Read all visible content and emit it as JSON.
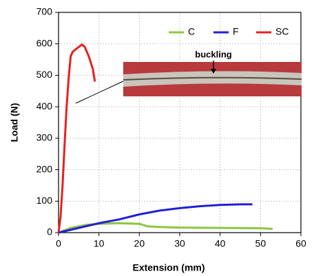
{
  "chart_data": {
    "type": "line",
    "xlabel": "Extension (mm)",
    "ylabel": "Load (N)",
    "annotation": "buckling",
    "xlim": [
      0,
      60
    ],
    "xticks": [
      0,
      10,
      20,
      30,
      40,
      50,
      60
    ],
    "ylim": [
      0,
      700
    ],
    "yticks": [
      0,
      100,
      200,
      300,
      400,
      500,
      600,
      700
    ],
    "grid": true,
    "legend": "top-right",
    "series": [
      {
        "name": "C",
        "color": "#8cc63f",
        "x": [
          0,
          3,
          7,
          10,
          15,
          20,
          22,
          25,
          30,
          40,
          50,
          53
        ],
        "values": [
          0,
          15,
          25,
          28,
          30,
          28,
          20,
          18,
          16,
          15,
          14,
          12
        ]
      },
      {
        "name": "F",
        "color": "#1f1fd6",
        "x": [
          0,
          5,
          10,
          15,
          20,
          25,
          30,
          35,
          40,
          45,
          48
        ],
        "values": [
          0,
          15,
          30,
          42,
          58,
          70,
          78,
          84,
          88,
          90,
          90
        ]
      },
      {
        "name": "SC",
        "color": "#e8201e",
        "x": [
          0,
          0.5,
          1,
          1.5,
          2,
          2.5,
          3,
          3.5,
          4,
          5,
          5.8,
          6.5,
          7.5,
          8.5,
          9
        ],
        "values": [
          0,
          50,
          150,
          280,
          400,
          490,
          560,
          575,
          580,
          590,
          598,
          590,
          560,
          520,
          480
        ]
      }
    ]
  }
}
